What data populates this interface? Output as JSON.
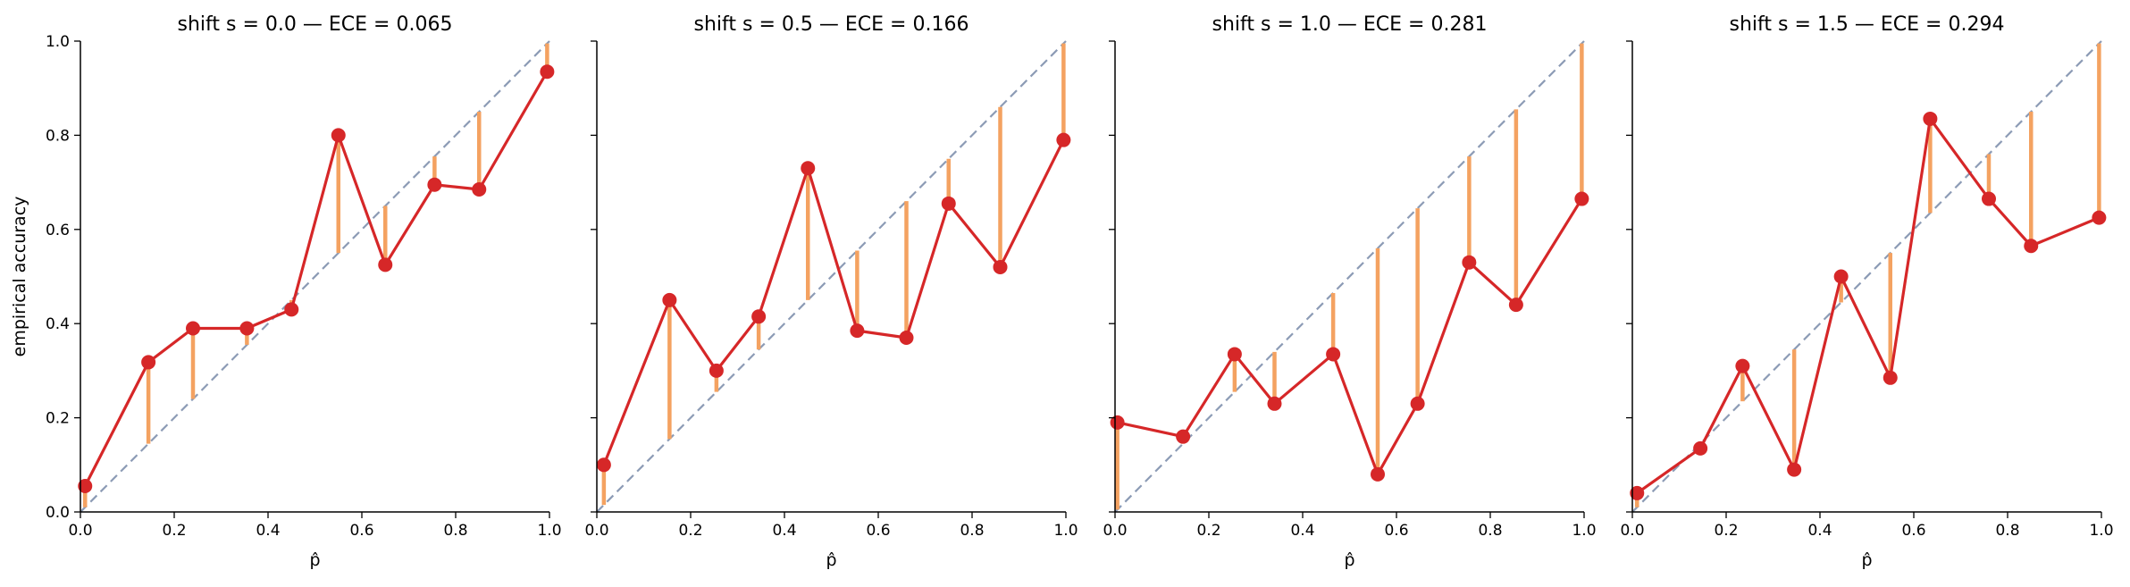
{
  "colors": {
    "calibration_line": "#d62728",
    "gap_bars": "#f4a261",
    "diagonal": "#8c9bb5",
    "axis": "#000000"
  },
  "shared": {
    "ylabel": "empirical accuracy",
    "xlabel": "p̂",
    "ticks": [
      "0.0",
      "0.2",
      "0.4",
      "0.6",
      "0.8",
      "1.0"
    ]
  },
  "chart_data": [
    {
      "type": "line",
      "title": "shift s = 0.0 — ECE = 0.065",
      "xlabel": "p̂",
      "ylabel": "empirical accuracy",
      "xlim": [
        0,
        1
      ],
      "ylim": [
        0,
        1
      ],
      "reference": "dashed diagonal y = x",
      "x": [
        0.01,
        0.145,
        0.24,
        0.355,
        0.45,
        0.55,
        0.65,
        0.755,
        0.85,
        0.995
      ],
      "y": [
        0.055,
        0.318,
        0.39,
        0.39,
        0.43,
        0.8,
        0.525,
        0.695,
        0.685,
        0.935
      ]
    },
    {
      "type": "line",
      "title": "shift s = 0.5 — ECE = 0.166",
      "xlabel": "p̂",
      "ylabel": "",
      "xlim": [
        0,
        1
      ],
      "ylim": [
        0,
        1
      ],
      "reference": "dashed diagonal y = x",
      "x": [
        0.015,
        0.155,
        0.255,
        0.345,
        0.45,
        0.555,
        0.66,
        0.75,
        0.86,
        0.995
      ],
      "y": [
        0.1,
        0.45,
        0.3,
        0.415,
        0.73,
        0.385,
        0.37,
        0.655,
        0.52,
        0.79
      ]
    },
    {
      "type": "line",
      "title": "shift s = 1.0 — ECE = 0.281",
      "xlabel": "p̂",
      "ylabel": "",
      "xlim": [
        0,
        1
      ],
      "ylim": [
        0,
        1
      ],
      "reference": "dashed diagonal y = x",
      "x": [
        0.005,
        0.145,
        0.255,
        0.34,
        0.465,
        0.56,
        0.645,
        0.755,
        0.855,
        0.995
      ],
      "y": [
        0.19,
        0.16,
        0.335,
        0.23,
        0.335,
        0.08,
        0.23,
        0.53,
        0.44,
        0.665
      ]
    },
    {
      "type": "line",
      "title": "shift s = 1.5 — ECE = 0.294",
      "xlabel": "p̂",
      "ylabel": "",
      "xlim": [
        0,
        1
      ],
      "ylim": [
        0,
        1
      ],
      "reference": "dashed diagonal y = x",
      "x": [
        0.01,
        0.145,
        0.235,
        0.345,
        0.445,
        0.55,
        0.635,
        0.76,
        0.85,
        0.995
      ],
      "y": [
        0.04,
        0.135,
        0.31,
        0.09,
        0.5,
        0.285,
        0.835,
        0.665,
        0.565,
        0.625
      ]
    }
  ]
}
